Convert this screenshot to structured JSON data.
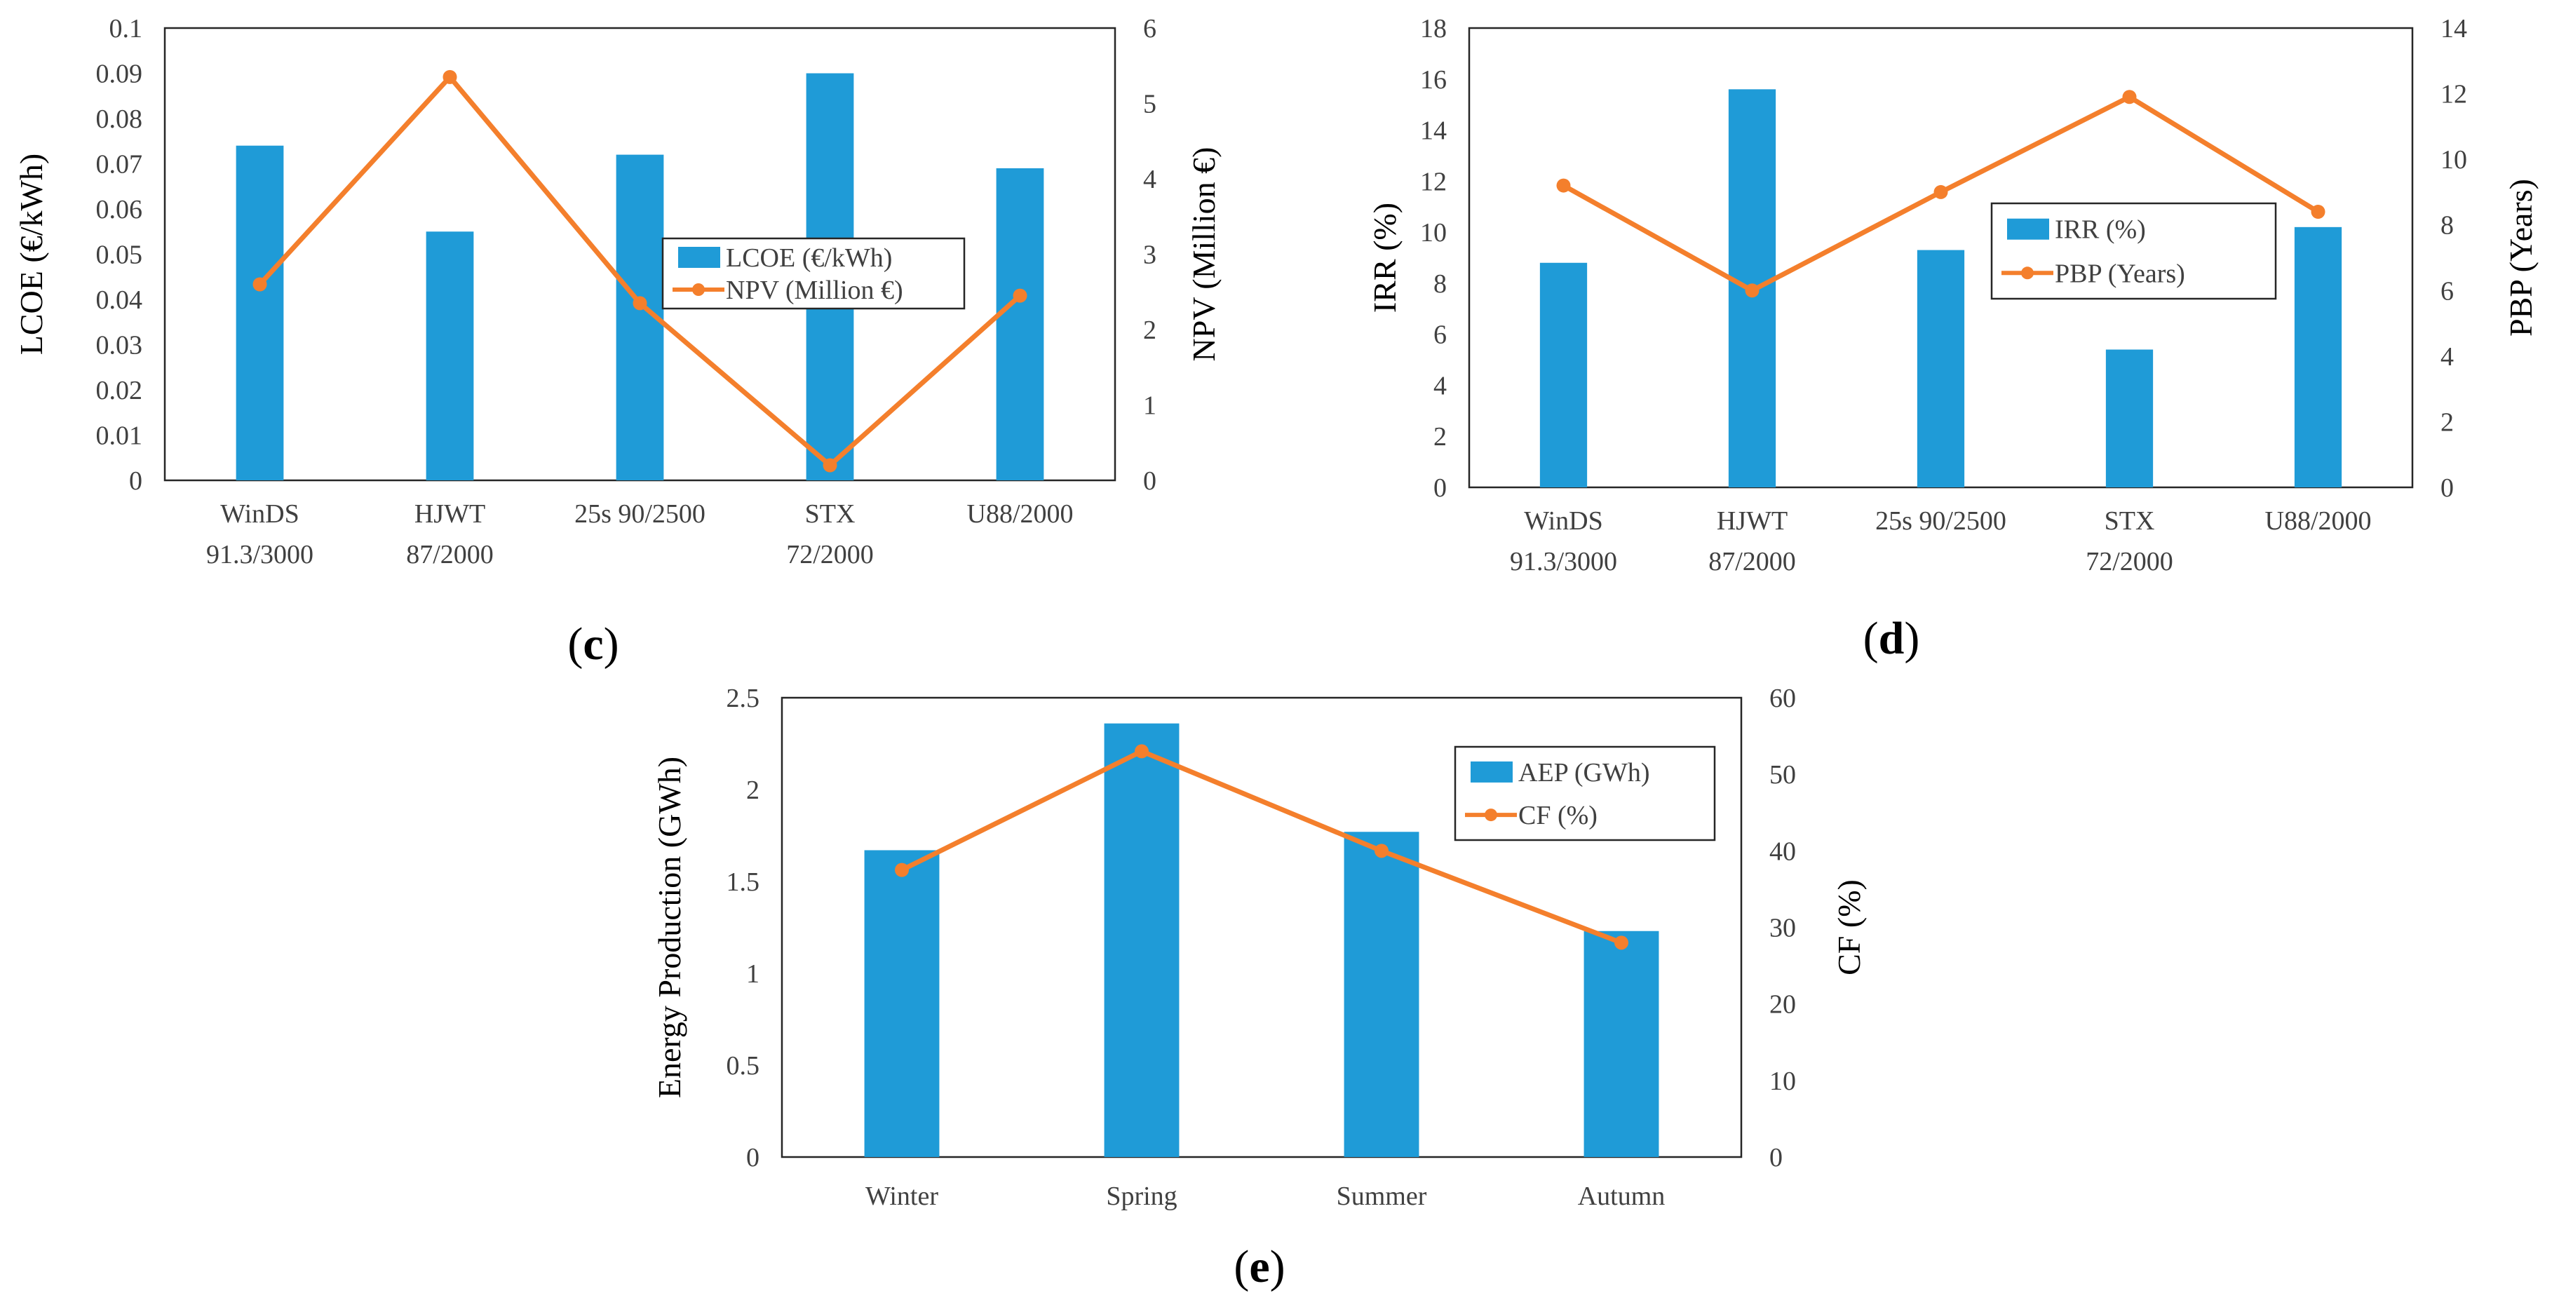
{
  "colors": {
    "bar": "#1f9bd7",
    "line": "#f47f2c",
    "axis": "#262626",
    "text": "#404040"
  },
  "chart_data": [
    {
      "id": "c",
      "type": "bar+line",
      "panel_label": {
        "open": "(",
        "letter": "c",
        "close": ")"
      },
      "categories": [
        [
          "WinDS",
          "91.3/3000"
        ],
        [
          "HJWT",
          "87/2000"
        ],
        [
          "25s 90/2500"
        ],
        [
          "STX",
          "72/2000"
        ],
        [
          "U88/2000"
        ]
      ],
      "series": [
        {
          "name": "LCOE (€/kWh)",
          "kind": "bar",
          "axis": "left",
          "values": [
            0.074,
            0.055,
            0.072,
            0.09,
            0.069
          ]
        },
        {
          "name": "NPV (Million €)",
          "kind": "line",
          "axis": "right",
          "values": [
            2.6,
            5.35,
            2.35,
            0.2,
            2.45
          ]
        }
      ],
      "left_axis": {
        "label": "LCOE (€/kWh)",
        "min": 0,
        "max": 0.1,
        "step": 0.01,
        "ticks": [
          "0",
          "0.01",
          "0.02",
          "0.03",
          "0.04",
          "0.05",
          "0.06",
          "0.07",
          "0.08",
          "0.09",
          "0.1"
        ]
      },
      "right_axis": {
        "label": "NPV (Million €)",
        "min": 0,
        "max": 6,
        "step": 1,
        "ticks": [
          "0",
          "1",
          "2",
          "3",
          "4",
          "5",
          "6"
        ]
      },
      "legend": "center-right"
    },
    {
      "id": "d",
      "type": "bar+line",
      "panel_label": {
        "open": "(",
        "letter": "d",
        "close": ")"
      },
      "categories": [
        [
          "WinDS",
          "91.3/3000"
        ],
        [
          "HJWT",
          "87/2000"
        ],
        [
          "25s 90/2500"
        ],
        [
          "STX",
          "72/2000"
        ],
        [
          "U88/2000"
        ]
      ],
      "series": [
        {
          "name": "IRR (%)",
          "kind": "bar",
          "axis": "left",
          "values": [
            8.8,
            15.6,
            9.3,
            5.4,
            10.2
          ]
        },
        {
          "name": "PBP (Years)",
          "kind": "line",
          "axis": "right",
          "values": [
            9.2,
            6.0,
            9.0,
            11.9,
            8.4
          ]
        }
      ],
      "left_axis": {
        "label": "IRR (%)",
        "min": 0,
        "max": 18,
        "step": 2,
        "ticks": [
          "0",
          "2",
          "4",
          "6",
          "8",
          "10",
          "12",
          "14",
          "16",
          "18"
        ]
      },
      "right_axis": {
        "label": "PBP (Years)",
        "min": 0,
        "max": 14,
        "step": 2,
        "ticks": [
          "0",
          "2",
          "4",
          "6",
          "8",
          "10",
          "12",
          "14"
        ]
      },
      "legend": "center-right"
    },
    {
      "id": "e",
      "type": "bar+line",
      "panel_label": {
        "open": "(",
        "letter": "e",
        "close": ")"
      },
      "categories": [
        [
          "Winter"
        ],
        [
          "Spring"
        ],
        [
          "Summer"
        ],
        [
          "Autumn"
        ]
      ],
      "series": [
        {
          "name": "AEP (GWh)",
          "kind": "bar",
          "axis": "left",
          "values": [
            1.67,
            2.36,
            1.77,
            1.23
          ]
        },
        {
          "name": "CF (%)",
          "kind": "line",
          "axis": "right",
          "values": [
            37.5,
            53.0,
            40.0,
            28.0
          ]
        }
      ],
      "left_axis": {
        "label": "Energy Production (GWh)",
        "min": 0,
        "max": 2.5,
        "step": 0.5,
        "ticks": [
          "0",
          "0.5",
          "1",
          "1.5",
          "2",
          "2.5"
        ]
      },
      "right_axis": {
        "label": "CF (%)",
        "min": 0,
        "max": 60,
        "step": 10,
        "ticks": [
          "0",
          "10",
          "20",
          "30",
          "40",
          "50",
          "60"
        ]
      },
      "legend": "top-right"
    }
  ]
}
